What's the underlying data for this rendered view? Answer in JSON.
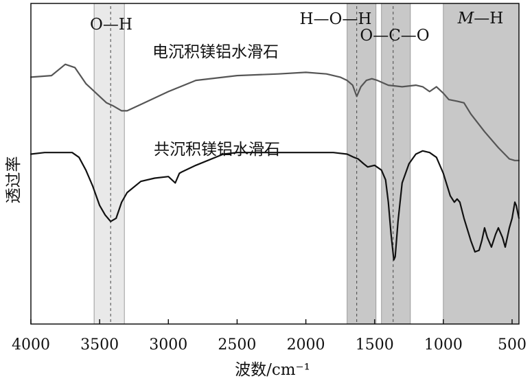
{
  "chart_data": {
    "type": "line",
    "title": "",
    "xlabel": "波数/cm⁻¹",
    "ylabel": "透过率",
    "xlim": [
      4000,
      450
    ],
    "x_reversed": true,
    "xticks": [
      4000,
      3500,
      3000,
      2500,
      2000,
      1500,
      1000,
      500
    ],
    "ylim": [
      0,
      1
    ],
    "yticks_visible": false,
    "grid": false,
    "bands": [
      {
        "label": "O—H",
        "range": [
          3540,
          3320
        ],
        "center": 3420,
        "color": "#e9e9e9"
      },
      {
        "label": "H—O—H",
        "range": [
          1700,
          1490
        ],
        "center": 1630,
        "color": "#c8c8c8"
      },
      {
        "label": "O—C—O",
        "range": [
          1450,
          1240
        ],
        "center": 1365,
        "color": "#c8c8c8"
      },
      {
        "label": "M—H",
        "label_italic": "M",
        "label_rest": "—H",
        "range": [
          1000,
          450
        ],
        "color": "#c8c8c8"
      }
    ],
    "series": [
      {
        "name": "电沉积镁铝水滑石",
        "color": "#555555",
        "x": [
          4000,
          3850,
          3750,
          3680,
          3600,
          3500,
          3450,
          3400,
          3340,
          3300,
          3200,
          3000,
          2800,
          2500,
          2200,
          2000,
          1850,
          1750,
          1700,
          1660,
          1630,
          1600,
          1560,
          1520,
          1480,
          1400,
          1300,
          1200,
          1150,
          1100,
          1050,
          1000,
          960,
          900,
          850,
          800,
          700,
          600,
          520,
          480,
          450
        ],
        "values": [
          0.77,
          0.775,
          0.81,
          0.8,
          0.75,
          0.71,
          0.69,
          0.68,
          0.665,
          0.665,
          0.685,
          0.725,
          0.76,
          0.775,
          0.78,
          0.785,
          0.78,
          0.77,
          0.76,
          0.745,
          0.71,
          0.74,
          0.76,
          0.765,
          0.76,
          0.745,
          0.74,
          0.745,
          0.74,
          0.725,
          0.74,
          0.72,
          0.7,
          0.695,
          0.69,
          0.655,
          0.6,
          0.55,
          0.515,
          0.51,
          0.51
        ]
      },
      {
        "name": "共沉积镁铝水滑石",
        "color": "#111111",
        "x": [
          4000,
          3900,
          3700,
          3650,
          3600,
          3550,
          3500,
          3460,
          3420,
          3380,
          3340,
          3300,
          3200,
          3100,
          3000,
          2950,
          2920,
          2900,
          2800,
          2600,
          2500,
          2300,
          2100,
          2000,
          1800,
          1700,
          1650,
          1620,
          1580,
          1550,
          1500,
          1450,
          1420,
          1400,
          1380,
          1360,
          1350,
          1330,
          1300,
          1250,
          1200,
          1150,
          1100,
          1050,
          1000,
          950,
          920,
          900,
          880,
          850,
          800,
          770,
          740,
          720,
          700,
          680,
          650,
          620,
          600,
          570,
          550,
          530,
          520,
          500,
          480,
          470,
          460,
          450
        ],
        "values": [
          0.53,
          0.535,
          0.535,
          0.52,
          0.48,
          0.43,
          0.37,
          0.34,
          0.32,
          0.33,
          0.38,
          0.41,
          0.445,
          0.455,
          0.46,
          0.44,
          0.47,
          0.475,
          0.495,
          0.53,
          0.535,
          0.535,
          0.535,
          0.535,
          0.535,
          0.53,
          0.52,
          0.515,
          0.5,
          0.49,
          0.495,
          0.48,
          0.45,
          0.38,
          0.28,
          0.2,
          0.21,
          0.32,
          0.44,
          0.5,
          0.53,
          0.54,
          0.535,
          0.52,
          0.47,
          0.4,
          0.38,
          0.39,
          0.38,
          0.33,
          0.26,
          0.225,
          0.23,
          0.26,
          0.3,
          0.27,
          0.24,
          0.28,
          0.3,
          0.27,
          0.24,
          0.28,
          0.3,
          0.33,
          0.38,
          0.37,
          0.35,
          0.33
        ]
      }
    ],
    "annotations": [
      {
        "text": "电沉积镁铝水滑石",
        "series": 0
      },
      {
        "text": "共沉积镁铝水滑石",
        "series": 1
      }
    ]
  }
}
